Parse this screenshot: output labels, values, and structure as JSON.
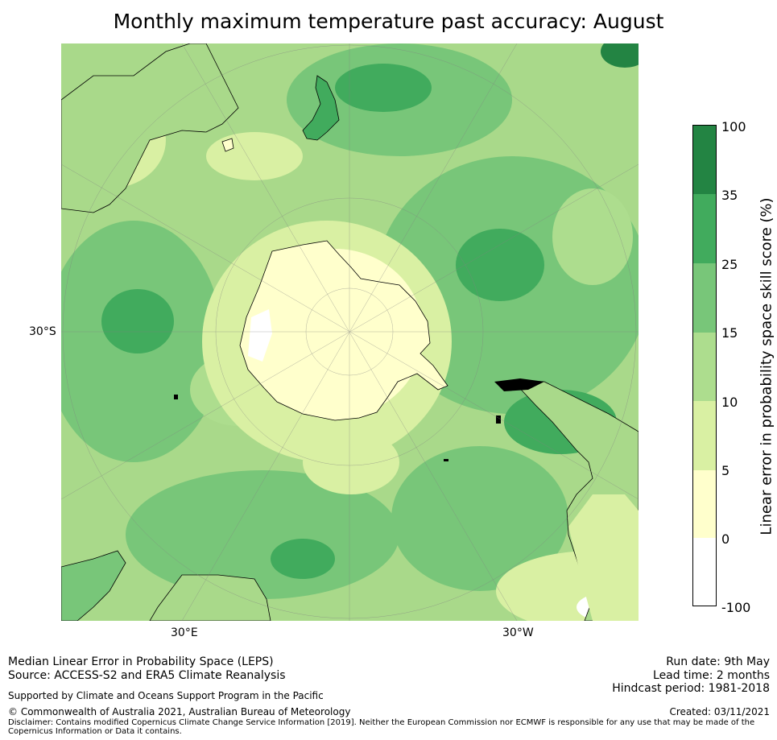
{
  "title": "Monthly maximum temperature past accuracy: August",
  "map": {
    "projection": "south-polar-stereographic",
    "axis_labels": {
      "lat": "30°S",
      "lon_left": "30°E",
      "lon_right": "30°W"
    }
  },
  "colorbar": {
    "label": "Linear error in probability space skill score (%)",
    "ticks": [
      "100",
      "35",
      "25",
      "15",
      "10",
      "5",
      "0",
      "-100"
    ],
    "bins": [
      {
        "range": "25 to 35 to 100",
        "color": "#238443"
      },
      {
        "range": "25-35",
        "color": "#41ab5d"
      },
      {
        "range": "15-25",
        "color": "#78c679"
      },
      {
        "range": "10-15",
        "color": "#addd8e"
      },
      {
        "range": "5-10",
        "color": "#d9f0a3"
      },
      {
        "range": "0-5",
        "color": "#ffffcc"
      },
      {
        "range": "-100-0",
        "color": "#ffffff"
      }
    ]
  },
  "footer": {
    "line1": "Median Linear Error in Probability Space (LEPS)",
    "line2": "Source: ACCESS-S2 and ERA5 Climate Reanalysis",
    "support": "Supported by Climate and Oceans Support Program in the Pacific",
    "copyright": "© Commonwealth of Australia 2021, Australian Bureau of Meteorology",
    "disclaimer": "Disclaimer: Contains modified Copernicus Climate Change Service Information [2019]. Neither the European Commission nor ECMWF is responsible for any use that may be made of the Copernicus Information or Data it contains.",
    "run_date": "Run date: 9th May",
    "lead_time": "Lead time: 2 months",
    "hindcast": "Hindcast period: 1981-2018",
    "created": "Created: 03/11/2021"
  }
}
